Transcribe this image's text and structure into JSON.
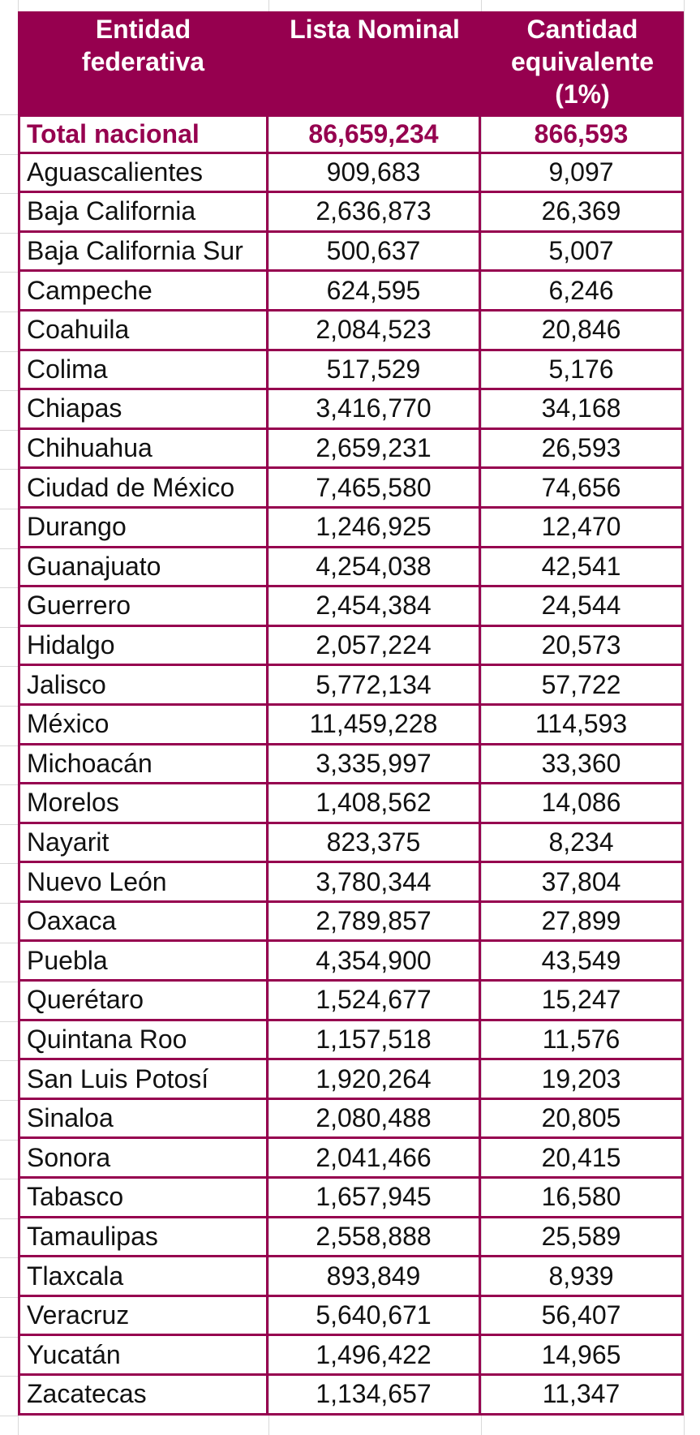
{
  "table": {
    "headers": {
      "entidad": [
        "Entidad",
        "federativa"
      ],
      "lista": [
        "Lista Nominal"
      ],
      "cantidad": [
        "Cantidad",
        "equivalente",
        "(1%)"
      ]
    },
    "total": {
      "entidad": "Total nacional",
      "lista": "86,659,234",
      "cantidad": "866,593"
    },
    "rows": [
      {
        "entidad": "Aguascalientes",
        "lista": "909,683",
        "cantidad": "9,097"
      },
      {
        "entidad": "Baja California",
        "lista": "2,636,873",
        "cantidad": "26,369"
      },
      {
        "entidad": "Baja California Sur",
        "lista": "500,637",
        "cantidad": "5,007"
      },
      {
        "entidad": "Campeche",
        "lista": "624,595",
        "cantidad": "6,246"
      },
      {
        "entidad": "Coahuila",
        "lista": "2,084,523",
        "cantidad": "20,846"
      },
      {
        "entidad": "Colima",
        "lista": "517,529",
        "cantidad": "5,176"
      },
      {
        "entidad": "Chiapas",
        "lista": "3,416,770",
        "cantidad": "34,168"
      },
      {
        "entidad": "Chihuahua",
        "lista": "2,659,231",
        "cantidad": "26,593"
      },
      {
        "entidad": "Ciudad de México",
        "lista": "7,465,580",
        "cantidad": "74,656"
      },
      {
        "entidad": "Durango",
        "lista": "1,246,925",
        "cantidad": "12,470"
      },
      {
        "entidad": "Guanajuato",
        "lista": "4,254,038",
        "cantidad": "42,541"
      },
      {
        "entidad": "Guerrero",
        "lista": "2,454,384",
        "cantidad": "24,544"
      },
      {
        "entidad": "Hidalgo",
        "lista": "2,057,224",
        "cantidad": "20,573"
      },
      {
        "entidad": "Jalisco",
        "lista": "5,772,134",
        "cantidad": "57,722"
      },
      {
        "entidad": "México",
        "lista": "11,459,228",
        "cantidad": "114,593"
      },
      {
        "entidad": "Michoacán",
        "lista": "3,335,997",
        "cantidad": "33,360"
      },
      {
        "entidad": "Morelos",
        "lista": "1,408,562",
        "cantidad": "14,086"
      },
      {
        "entidad": "Nayarit",
        "lista": "823,375",
        "cantidad": "8,234"
      },
      {
        "entidad": "Nuevo León",
        "lista": "3,780,344",
        "cantidad": "37,804"
      },
      {
        "entidad": "Oaxaca",
        "lista": "2,789,857",
        "cantidad": "27,899"
      },
      {
        "entidad": "Puebla",
        "lista": "4,354,900",
        "cantidad": "43,549"
      },
      {
        "entidad": "Querétaro",
        "lista": "1,524,677",
        "cantidad": "15,247"
      },
      {
        "entidad": "Quintana Roo",
        "lista": "1,157,518",
        "cantidad": "11,576"
      },
      {
        "entidad": "San Luis Potosí",
        "lista": "1,920,264",
        "cantidad": "19,203"
      },
      {
        "entidad": "Sinaloa",
        "lista": "2,080,488",
        "cantidad": "20,805"
      },
      {
        "entidad": "Sonora",
        "lista": "2,041,466",
        "cantidad": "20,415"
      },
      {
        "entidad": "Tabasco",
        "lista": "1,657,945",
        "cantidad": "16,580"
      },
      {
        "entidad": "Tamaulipas",
        "lista": "2,558,888",
        "cantidad": "25,589"
      },
      {
        "entidad": "Tlaxcala",
        "lista": "893,849",
        "cantidad": "8,939"
      },
      {
        "entidad": "Veracruz",
        "lista": "5,640,671",
        "cantidad": "56,407"
      },
      {
        "entidad": "Yucatán",
        "lista": "1,496,422",
        "cantidad": "14,965"
      },
      {
        "entidad": "Zacatecas",
        "lista": "1,134,657",
        "cantidad": "11,347"
      }
    ]
  },
  "colors": {
    "accent": "#96004f",
    "header_text": "#ffffff",
    "cell_text": "#111111"
  }
}
